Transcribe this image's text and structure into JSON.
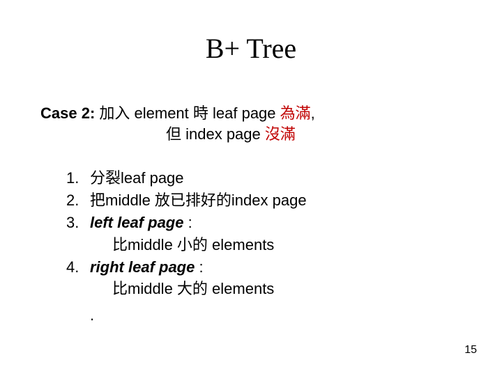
{
  "colors": {
    "background": "#ffffff",
    "text": "#000000",
    "accent": "#c00000"
  },
  "typography": {
    "title_family": "Times New Roman",
    "title_size_pt": 30,
    "body_family": "Arial",
    "body_size_pt": 16
  },
  "title": "B+ Tree",
  "case": {
    "label": "Case 2:",
    "line1_a": " 加入 element 時  leaf page ",
    "line1_b": "為滿",
    "line1_c": ",",
    "line2_a": "但 index page ",
    "line2_b": "沒滿"
  },
  "list": {
    "items": [
      {
        "num": "1.",
        "text": "分裂leaf page"
      },
      {
        "num": "2.",
        "text": "把middle 放已排好的index page"
      },
      {
        "num": "3.",
        "heading": "left leaf page",
        "colon": " :",
        "sub": "比middle 小的 elements"
      },
      {
        "num": "4.",
        "heading": "right leaf page",
        "colon": " :",
        "sub": "比middle 大的 elements"
      }
    ],
    "trailing": "."
  },
  "page_number": "15"
}
